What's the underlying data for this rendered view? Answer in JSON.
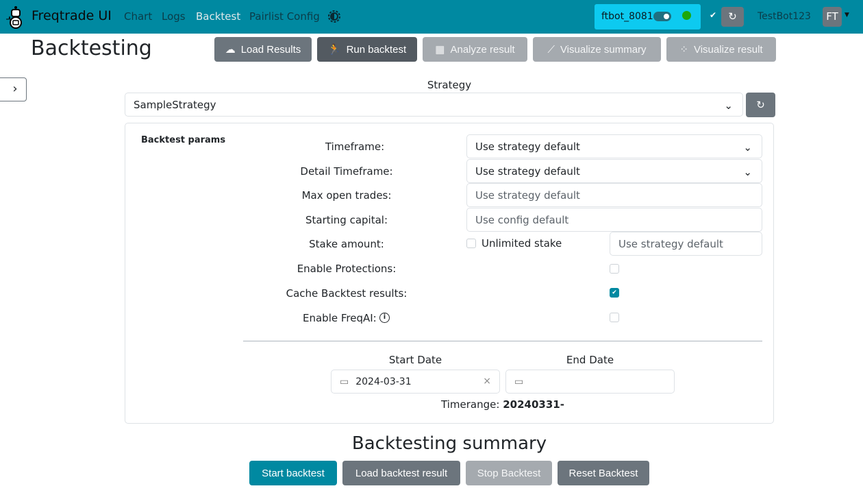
{
  "navbar": {
    "brand": "Freqtrade UI",
    "links": [
      "Chart",
      "Logs",
      "Backtest",
      "Pairlist Config"
    ],
    "active": "Backtest",
    "bot_name": "ftbot_8081",
    "bot_online_color": "#1ea70c",
    "username": "TestBot123",
    "avatar": "FT"
  },
  "page": {
    "title": "Backtesting"
  },
  "toolbar": {
    "load_results": "Load Results",
    "run_backtest": "Run backtest",
    "analyze_result": "Analyze result",
    "visualize_summary": "Visualize summary",
    "visualize_result": "Visualize result"
  },
  "strategy": {
    "label": "Strategy",
    "value": "SampleStrategy"
  },
  "params": {
    "title": "Backtest params",
    "timeframe_label": "Timeframe:",
    "timeframe_value": "Use strategy default",
    "detail_timeframe_label": "Detail Timeframe:",
    "detail_timeframe_value": "Use strategy default",
    "max_open_trades_label": "Max open trades:",
    "max_open_trades_placeholder": "Use strategy default",
    "starting_capital_label": "Starting capital:",
    "starting_capital_placeholder": "Use config default",
    "stake_amount_label": "Stake amount:",
    "unlimited_stake_label": "Unlimited stake",
    "unlimited_stake_checked": false,
    "stake_amount_placeholder": "Use strategy default",
    "enable_protections_label": "Enable Protections:",
    "enable_protections_checked": false,
    "cache_label": "Cache Backtest results:",
    "cache_checked": true,
    "freqai_label": "Enable FreqAI:",
    "freqai_checked": false,
    "start_date_label": "Start Date",
    "start_date_value": "2024-03-31",
    "end_date_label": "End Date",
    "end_date_value": "",
    "timerange_label": "Timerange:",
    "timerange_value": "20240331-"
  },
  "summary": {
    "title": "Backtesting summary",
    "start": "Start backtest",
    "load": "Load backtest result",
    "stop": "Stop Backtest",
    "reset": "Reset Backtest"
  },
  "colors": {
    "primary": "#0089a1",
    "secondary": "#6c757d"
  }
}
